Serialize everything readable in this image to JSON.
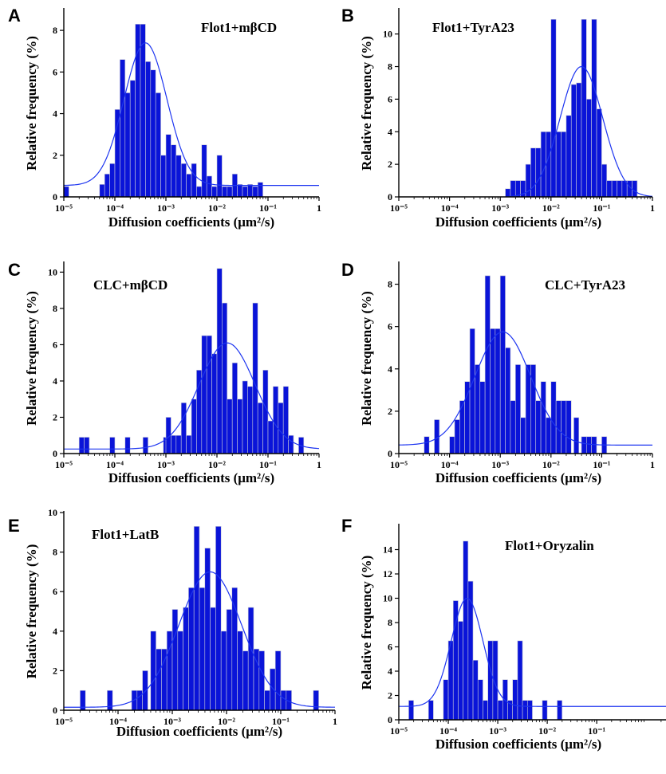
{
  "colors": {
    "bar": "#0a14d8",
    "bar_edge": "#c8cad8",
    "fit": "#1d35f0",
    "axis": "#000000"
  },
  "chart_data": [
    {
      "panel": "A",
      "type": "bar",
      "title": "Flot1+mβCD",
      "xlabel": "Diffusion coefficients (μm²/s)",
      "ylabel": "Relative frequency (%)",
      "xscale": "log",
      "xlim": [
        -5,
        0
      ],
      "ylim": [
        0,
        9
      ],
      "yticks": [
        0,
        2,
        4,
        6,
        8
      ],
      "xtick_labels": [
        "10⁻⁵",
        "10⁻⁴",
        "10⁻³",
        "10⁻²",
        "10⁻¹",
        "1"
      ],
      "bins_log10": [
        -4.95,
        -4.25,
        -4.15,
        -4.05,
        -3.95,
        -3.85,
        -3.75,
        -3.65,
        -3.55,
        -3.45,
        -3.35,
        -3.25,
        -3.15,
        -3.05,
        -2.95,
        -2.85,
        -2.75,
        -2.65,
        -2.55,
        -2.45,
        -2.35,
        -2.25,
        -2.15,
        -2.05,
        -1.95,
        -1.85,
        -1.75,
        -1.65,
        -1.55,
        -1.45,
        -1.35,
        -1.25,
        -1.15
      ],
      "values": [
        0.5,
        0.6,
        1.1,
        1.6,
        4.2,
        6.6,
        5.0,
        5.6,
        8.3,
        8.3,
        6.5,
        6.1,
        5.0,
        2.0,
        3.0,
        2.5,
        2.0,
        1.6,
        1.1,
        1.6,
        0.5,
        2.5,
        1.0,
        0.5,
        2.0,
        0.5,
        0.5,
        1.1,
        0.6,
        0.5,
        0.6,
        0.5,
        0.7
      ],
      "fit": {
        "mu_log10": -3.4,
        "sigma": 0.42,
        "amp": 6.85,
        "y0": 0.55
      }
    },
    {
      "panel": "B",
      "type": "bar",
      "title": "Flot1+TyrA23",
      "xlabel": "Diffusion coefficients (μm²/s)",
      "ylabel": "Relative frequency (%)",
      "xscale": "log",
      "xlim": [
        -5,
        0
      ],
      "ylim": [
        0,
        11.5
      ],
      "yticks": [
        0,
        2,
        4,
        6,
        8,
        10
      ],
      "xtick_labels": [
        "10⁻⁵",
        "10⁻⁴",
        "10⁻³",
        "10⁻²",
        "10⁻¹",
        "1"
      ],
      "bins_log10": [
        -2.85,
        -2.75,
        -2.65,
        -2.55,
        -2.45,
        -2.35,
        -2.25,
        -2.15,
        -2.05,
        -1.95,
        -1.85,
        -1.75,
        -1.65,
        -1.55,
        -1.45,
        -1.35,
        -1.25,
        -1.15,
        -1.05,
        -0.95,
        -0.85,
        -0.75,
        -0.65,
        -0.55,
        -0.45,
        -0.35
      ],
      "values": [
        0.5,
        1.0,
        1.0,
        1.0,
        2.0,
        3.0,
        3.0,
        4.0,
        4.0,
        10.9,
        4.0,
        4.0,
        5.0,
        6.9,
        7.0,
        10.9,
        6.0,
        10.9,
        5.4,
        2.0,
        1.0,
        1.0,
        1.0,
        1.0,
        1.0,
        1.0
      ],
      "fit": {
        "mu_log10": -1.4,
        "sigma": 0.42,
        "amp": 8.0,
        "y0": 0
      }
    },
    {
      "panel": "C",
      "type": "bar",
      "title": "CLC+mβCD",
      "xlabel": "Diffusion coefficients (μm²/s)",
      "ylabel": "Relative frequency (%)",
      "xscale": "log",
      "xlim": [
        -5,
        0
      ],
      "ylim": [
        0,
        10.5
      ],
      "yticks": [
        0,
        2,
        4,
        6,
        8,
        10
      ],
      "xtick_labels": [
        "10⁻⁵",
        "10⁻⁴",
        "10⁻³",
        "10⁻²",
        "10⁻¹",
        "1"
      ],
      "bins_log10": [
        -4.65,
        -4.55,
        -4.05,
        -3.75,
        -3.4,
        -3.0,
        -2.95,
        -2.85,
        -2.75,
        -2.65,
        -2.55,
        -2.45,
        -2.35,
        -2.25,
        -2.15,
        -2.05,
        -1.95,
        -1.85,
        -1.75,
        -1.65,
        -1.55,
        -1.45,
        -1.35,
        -1.25,
        -1.15,
        -1.05,
        -0.95,
        -0.85,
        -0.75,
        -0.65,
        -0.55,
        -0.35
      ],
      "values": [
        0.9,
        0.9,
        0.9,
        0.9,
        0.9,
        0.9,
        2.0,
        1.0,
        1.0,
        2.8,
        1.0,
        3.0,
        4.6,
        6.5,
        6.5,
        5.5,
        10.2,
        8.3,
        3.0,
        5.0,
        3.0,
        4.0,
        3.7,
        8.3,
        2.8,
        4.6,
        1.8,
        3.7,
        2.8,
        3.7,
        1.0,
        0.9
      ],
      "fit": {
        "mu_log10": -1.8,
        "sigma": 0.55,
        "amp": 5.85,
        "y0": 0.25
      }
    },
    {
      "panel": "D",
      "type": "bar",
      "title": "CLC+TyrA23",
      "xlabel": "Diffusion coefficients (μm²/s)",
      "ylabel": "Relative frequency (%)",
      "xscale": "log",
      "xlim": [
        -5,
        0
      ],
      "ylim": [
        0,
        9
      ],
      "yticks": [
        0,
        2,
        4,
        6,
        8
      ],
      "xtick_labels": [
        "10⁻⁵",
        "10⁻⁴",
        "10⁻³",
        "10⁻²",
        "10⁻¹",
        "1"
      ],
      "bins_log10": [
        -4.45,
        -4.25,
        -3.95,
        -3.85,
        -3.75,
        -3.65,
        -3.55,
        -3.45,
        -3.35,
        -3.25,
        -3.15,
        -3.05,
        -2.95,
        -2.85,
        -2.75,
        -2.65,
        -2.55,
        -2.45,
        -2.35,
        -2.25,
        -2.15,
        -2.05,
        -1.95,
        -1.85,
        -1.75,
        -1.65,
        -1.5,
        -1.35,
        -1.25,
        -1.15,
        -0.95
      ],
      "values": [
        0.8,
        1.6,
        0.8,
        1.6,
        2.5,
        3.4,
        5.9,
        4.2,
        3.4,
        8.4,
        5.9,
        5.9,
        8.4,
        5.0,
        2.5,
        4.2,
        1.7,
        4.2,
        4.2,
        2.5,
        3.4,
        1.7,
        3.4,
        2.5,
        2.5,
        2.5,
        1.7,
        0.8,
        0.8,
        0.8,
        0.8
      ],
      "fit": {
        "mu_log10": -2.95,
        "sigma": 0.55,
        "amp": 5.35,
        "y0": 0.4
      }
    },
    {
      "panel": "E",
      "type": "bar",
      "title": "Flot1+LatB",
      "xlabel": "Diffusion coefficients (μm²/s)",
      "ylabel": "Relative frequency (%)",
      "xscale": "log",
      "xlim": [
        -5,
        0
      ],
      "ylim": [
        0,
        10
      ],
      "yticks": [
        0,
        2,
        4,
        6,
        8,
        10
      ],
      "xtick_labels": [
        "10⁻⁵",
        "10⁻⁴",
        "10⁻³",
        "10⁻²",
        "10⁻¹",
        "1"
      ],
      "bins_log10": [
        -4.65,
        -4.15,
        -3.7,
        -3.6,
        -3.5,
        -3.35,
        -3.25,
        -3.15,
        -3.05,
        -2.95,
        -2.85,
        -2.75,
        -2.65,
        -2.55,
        -2.45,
        -2.35,
        -2.25,
        -2.15,
        -2.05,
        -1.95,
        -1.85,
        -1.75,
        -1.65,
        -1.55,
        -1.45,
        -1.35,
        -1.25,
        -1.15,
        -1.05,
        -0.95,
        -0.85,
        -0.35
      ],
      "values": [
        1.0,
        1.0,
        1.0,
        1.0,
        2.0,
        4.0,
        3.1,
        3.1,
        4.0,
        5.1,
        4.0,
        5.2,
        6.2,
        9.3,
        6.2,
        8.2,
        5.2,
        9.3,
        4.0,
        5.1,
        6.2,
        4.0,
        3.0,
        5.2,
        3.1,
        3.0,
        1.0,
        2.1,
        3.0,
        1.0,
        1.0,
        1.0
      ],
      "fit": {
        "mu_log10": -2.3,
        "sigma": 0.58,
        "amp": 6.85,
        "y0": 0.15
      }
    },
    {
      "panel": "F",
      "type": "bar",
      "title": "Flot1+Oryzalin",
      "xlabel": "Diffusion coefficients (μm²/s)",
      "ylabel": "Relative frequency (%)",
      "xscale": "log",
      "xlim": [
        -5,
        0
      ],
      "ylim": [
        0,
        16
      ],
      "yticks": [
        0,
        2,
        4,
        6,
        8,
        10,
        12,
        14
      ],
      "xtick_labels": [
        "10⁻⁵",
        "10⁻⁴",
        "10⁻³",
        "10⁻²",
        "10⁻¹"
      ],
      "bins_log10": [
        -4.75,
        -4.35,
        -4.05,
        -3.95,
        -3.85,
        -3.75,
        -3.65,
        -3.55,
        -3.45,
        -3.35,
        -3.25,
        -3.15,
        -3.05,
        -2.95,
        -2.85,
        -2.75,
        -2.65,
        -2.55,
        -2.45,
        -2.35,
        -2.05,
        -1.75
      ],
      "values": [
        1.6,
        1.6,
        3.3,
        6.5,
        9.8,
        8.1,
        14.7,
        11.4,
        4.9,
        3.3,
        1.6,
        6.5,
        6.5,
        1.6,
        3.3,
        1.6,
        3.3,
        6.5,
        1.6,
        1.6,
        1.6,
        1.6
      ],
      "fit": {
        "mu_log10": -3.62,
        "sigma": 0.32,
        "amp": 8.9,
        "y0": 1.1
      }
    }
  ]
}
